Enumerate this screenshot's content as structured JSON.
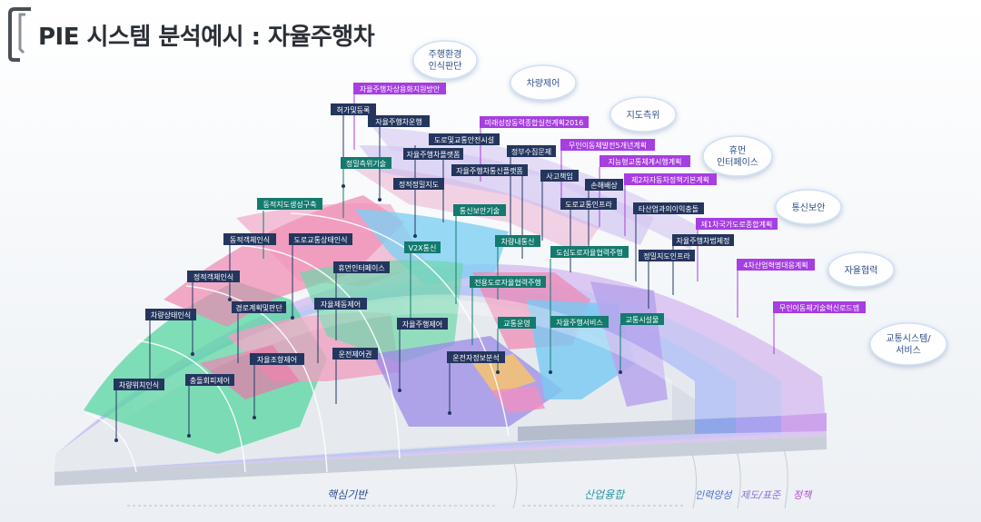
{
  "title": "PIE 시스템 분석예시 : 자율주행차",
  "bubbles": [
    {
      "lines": [
        "주행환경",
        "인식판단"
      ]
    },
    {
      "lines": [
        "차량제어"
      ]
    },
    {
      "lines": [
        "지도측위"
      ]
    },
    {
      "lines": [
        "휴먼",
        "인터페이스"
      ]
    },
    {
      "lines": [
        "통신보안"
      ]
    },
    {
      "lines": [
        "자율협력"
      ]
    },
    {
      "lines": [
        "교통시스템/",
        "서비스"
      ]
    }
  ],
  "tags": [
    {
      "text": "자율주행차상용화지원방안",
      "kind": "purple"
    },
    {
      "text": "허가및등록",
      "kind": "navy"
    },
    {
      "text": "자율주행차운행",
      "kind": "navy"
    },
    {
      "text": "미래성장동력종합실천계획2016",
      "kind": "purple"
    },
    {
      "text": "도로및교통안전시설",
      "kind": "navy"
    },
    {
      "text": "자율주행차플랫폼",
      "kind": "navy"
    },
    {
      "text": "정부수집문제",
      "kind": "navy"
    },
    {
      "text": "무인이동체발전5개년계획",
      "kind": "purple"
    },
    {
      "text": "정밀측위기술",
      "kind": "teal"
    },
    {
      "text": "자율주행차통신플랫폼",
      "kind": "navy"
    },
    {
      "text": "사고책임",
      "kind": "navy"
    },
    {
      "text": "지능형교통체계시행계획",
      "kind": "purple"
    },
    {
      "text": "정적정밀지도",
      "kind": "navy"
    },
    {
      "text": "손해배상",
      "kind": "navy"
    },
    {
      "text": "제2차자동차정책기본계획",
      "kind": "purple"
    },
    {
      "text": "동적지도생성구축",
      "kind": "teal"
    },
    {
      "text": "통신보안기술",
      "kind": "teal"
    },
    {
      "text": "도로교통인프라",
      "kind": "navy"
    },
    {
      "text": "타산업과의이익충돌",
      "kind": "navy"
    },
    {
      "text": "제1차국가도로종합계획",
      "kind": "purple"
    },
    {
      "text": "동적객체인식",
      "kind": "navy"
    },
    {
      "text": "도로교통상태인식",
      "kind": "navy"
    },
    {
      "text": "V2X통신",
      "kind": "teal"
    },
    {
      "text": "차량내통신",
      "kind": "teal"
    },
    {
      "text": "도심도로자율협력주행",
      "kind": "teal"
    },
    {
      "text": "자율주행차법제정",
      "kind": "navy"
    },
    {
      "text": "정밀지도인프라",
      "kind": "navy"
    },
    {
      "text": "4차산업혁명대응계획",
      "kind": "purple"
    },
    {
      "text": "휴먼인터페이스",
      "kind": "navy"
    },
    {
      "text": "정적객체인식",
      "kind": "navy"
    },
    {
      "text": "전용도로자율협력주행",
      "kind": "teal"
    },
    {
      "text": "자율제동제어",
      "kind": "navy"
    },
    {
      "text": "경로계획및판단",
      "kind": "navy"
    },
    {
      "text": "무인이동체기술혁신로드맵",
      "kind": "purple"
    },
    {
      "text": "차량상태인식",
      "kind": "navy"
    },
    {
      "text": "교통운영",
      "kind": "teal"
    },
    {
      "text": "자율주행서비스",
      "kind": "teal"
    },
    {
      "text": "교통시설물",
      "kind": "teal"
    },
    {
      "text": "자율주행제어",
      "kind": "navy"
    },
    {
      "text": "자율조향제어",
      "kind": "navy"
    },
    {
      "text": "운전제어권",
      "kind": "navy"
    },
    {
      "text": "운전자정보분석",
      "kind": "navy"
    },
    {
      "text": "충돌회피제어",
      "kind": "navy"
    },
    {
      "text": "차량위치인식",
      "kind": "navy"
    }
  ],
  "bottom_labels": [
    {
      "text": "핵심기반",
      "color": "#2d4f8c"
    },
    {
      "text": "산업융합",
      "color": "#2b9aa6"
    },
    {
      "text": "인력양성",
      "color": "#4b6fcf"
    },
    {
      "text": "제도/표준",
      "color": "#8a6fd6"
    },
    {
      "text": "정책",
      "color": "#b04fc9"
    }
  ],
  "colors": {
    "navy": "#24365e",
    "teal": "#137a6e",
    "purple": "#a63ee0",
    "pink": "#ec8fb5",
    "green": "#4fd49a",
    "blue": "#7fc7f2",
    "lavender": "#c3b1ec",
    "orange": "#f4c27a"
  }
}
